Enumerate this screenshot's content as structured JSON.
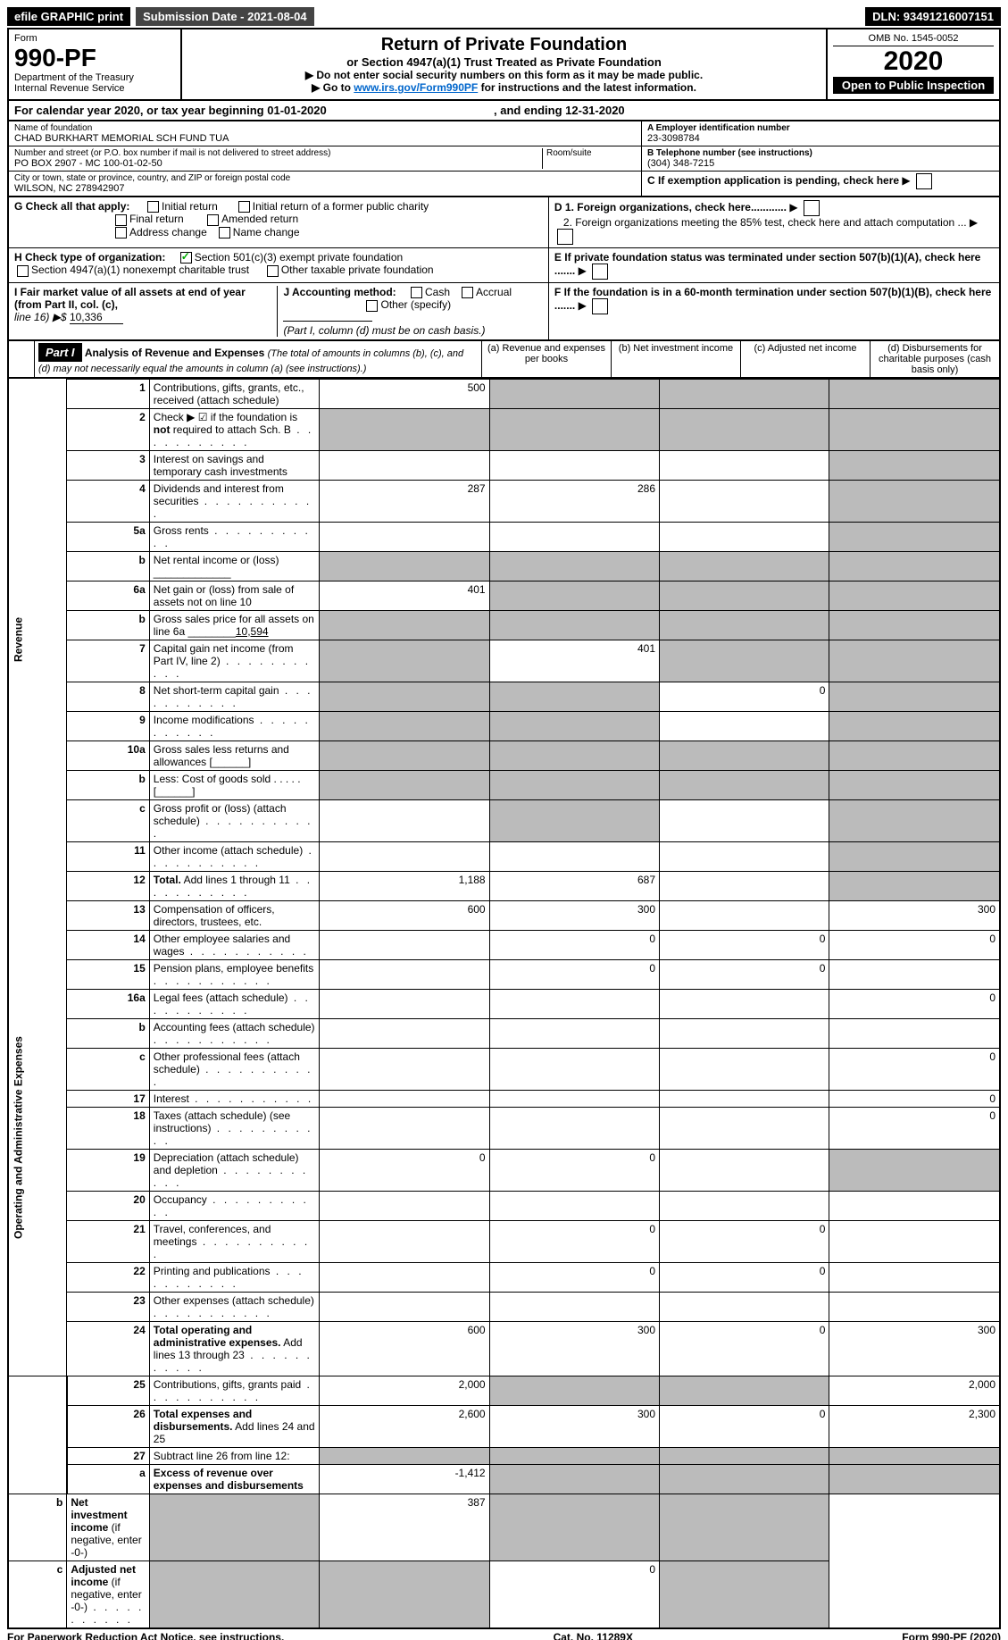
{
  "header": {
    "efile": "efile GRAPHIC print",
    "submission": "Submission Date - 2021-08-04",
    "dln": "DLN: 93491216007151"
  },
  "formbox": {
    "form_label": "Form",
    "form_number": "990-PF",
    "dept1": "Department of the Treasury",
    "dept2": "Internal Revenue Service",
    "title": "Return of Private Foundation",
    "subtitle": "or Section 4947(a)(1) Trust Treated as Private Foundation",
    "instr1": "▶ Do not enter social security numbers on this form as it may be made public.",
    "instr2": "▶ Go to ",
    "instr2_link": "www.irs.gov/Form990PF",
    "instr2_tail": " for instructions and the latest information.",
    "omb": "OMB No. 1545-0052",
    "year": "2020",
    "open": "Open to Public Inspection"
  },
  "calyear": {
    "prefix": "For calendar year 2020, or tax year beginning ",
    "begin": "01-01-2020",
    "mid": ", and ending ",
    "end": "12-31-2020"
  },
  "entity": {
    "name_lbl": "Name of foundation",
    "name": "CHAD BURKHART MEMORIAL SCH FUND TUA",
    "ein_lbl": "A Employer identification number",
    "ein": "23-3098784",
    "addr_lbl": "Number and street (or P.O. box number if mail is not delivered to street address)",
    "addr": "PO BOX 2907 - MC 100-01-02-50",
    "room_lbl": "Room/suite",
    "tel_lbl": "B Telephone number (see instructions)",
    "tel": "(304) 348-7215",
    "city_lbl": "City or town, state or province, country, and ZIP or foreign postal code",
    "city": "WILSON, NC  278942907",
    "c_lbl": "C If exemption application is pending, check here"
  },
  "checks": {
    "g_lbl": "G Check all that apply:",
    "g1": "Initial return",
    "g2": "Final return",
    "g3": "Address change",
    "g4": "Initial return of a former public charity",
    "g5": "Amended return",
    "g6": "Name change",
    "h_lbl": "H Check type of organization:",
    "h1": "Section 501(c)(3) exempt private foundation",
    "h2": "Section 4947(a)(1) nonexempt charitable trust",
    "h3": "Other taxable private foundation",
    "i_lbl": "I Fair market value of all assets at end of year (from Part II, col. (c),",
    "i_line": "line 16) ▶$ ",
    "i_val": "10,336",
    "j_lbl": "J Accounting method:",
    "j_cash": "Cash",
    "j_accr": "Accrual",
    "j_other": "Other (specify)",
    "j_note": "(Part I, column (d) must be on cash basis.)",
    "d1": "D 1. Foreign organizations, check here............",
    "d2": "2. Foreign organizations meeting the 85% test, check here and attach computation ...",
    "e": "E  If private foundation status was terminated under section 507(b)(1)(A), check here .......",
    "f": "F  If the foundation is in a 60-month termination under section 507(b)(1)(B), check here .......",
    "arrow": "▶"
  },
  "part1": {
    "label": "Part I",
    "title": "Analysis of Revenue and Expenses",
    "title_note": " (The total of amounts in columns (b), (c), and (d) may not necessarily equal the amounts in column (a) (see instructions).)",
    "col_a": "(a)   Revenue and expenses per books",
    "col_b": "(b)   Net investment income",
    "col_c": "(c)   Adjusted net income",
    "col_d": "(d)   Disbursements for charitable purposes (cash basis only)"
  },
  "sidelabels": {
    "rev": "Revenue",
    "op": "Operating and Administrative Expenses"
  },
  "rows": [
    {
      "n": "1",
      "lbl": "Contributions, gifts, grants, etc., received (attach schedule)",
      "a": "500",
      "b": "",
      "c": "",
      "d": "",
      "grey_b": true,
      "grey_c": true,
      "grey_d": true
    },
    {
      "n": "2",
      "lbl": "Check ▶ ☑ if the foundation is <b>not</b> required to attach Sch. B",
      "a": "",
      "b": "",
      "c": "",
      "d": "",
      "grey_a": true,
      "grey_b": true,
      "grey_c": true,
      "grey_d": true,
      "dots": true
    },
    {
      "n": "3",
      "lbl": "Interest on savings and temporary cash investments",
      "a": "",
      "b": "",
      "c": "",
      "d": "",
      "grey_d": true
    },
    {
      "n": "4",
      "lbl": "Dividends and interest from securities",
      "a": "287",
      "b": "286",
      "c": "",
      "d": "",
      "grey_d": true,
      "dots": true
    },
    {
      "n": "5a",
      "lbl": "Gross rents",
      "a": "",
      "b": "",
      "c": "",
      "d": "",
      "grey_d": true,
      "dots": true
    },
    {
      "n": "b",
      "lbl": "Net rental income or (loss)  _____________",
      "a": "",
      "b": "",
      "c": "",
      "d": "",
      "grey_a": true,
      "grey_b": true,
      "grey_c": true,
      "grey_d": true
    },
    {
      "n": "6a",
      "lbl": "Net gain or (loss) from sale of assets not on line 10",
      "a": "401",
      "b": "",
      "c": "",
      "d": "",
      "grey_b": true,
      "grey_c": true,
      "grey_d": true
    },
    {
      "n": "b",
      "lbl": "Gross sales price for all assets on line 6a ________<u>10,594</u>",
      "a": "",
      "b": "",
      "c": "",
      "d": "",
      "grey_a": true,
      "grey_b": true,
      "grey_c": true,
      "grey_d": true
    },
    {
      "n": "7",
      "lbl": "Capital gain net income (from Part IV, line 2)",
      "a": "",
      "b": "401",
      "c": "",
      "d": "",
      "grey_a": true,
      "grey_c": true,
      "grey_d": true,
      "dots": true
    },
    {
      "n": "8",
      "lbl": "Net short-term capital gain",
      "a": "",
      "b": "",
      "c": "0",
      "d": "",
      "grey_a": true,
      "grey_b": true,
      "grey_d": true,
      "dots": true
    },
    {
      "n": "9",
      "lbl": "Income modifications",
      "a": "",
      "b": "",
      "c": "",
      "d": "",
      "grey_a": true,
      "grey_b": true,
      "grey_d": true,
      "dots": true
    },
    {
      "n": "10a",
      "lbl": "Gross sales less returns and allowances  [______]",
      "a": "",
      "b": "",
      "c": "",
      "d": "",
      "grey_a": true,
      "grey_b": true,
      "grey_c": true,
      "grey_d": true
    },
    {
      "n": "b",
      "lbl": "Less: Cost of goods sold   .  .  .  .  .  [______]",
      "a": "",
      "b": "",
      "c": "",
      "d": "",
      "grey_a": true,
      "grey_b": true,
      "grey_c": true,
      "grey_d": true
    },
    {
      "n": "c",
      "lbl": "Gross profit or (loss) (attach schedule)",
      "a": "",
      "b": "",
      "c": "",
      "d": "",
      "grey_b": true,
      "grey_d": true,
      "dots": true
    },
    {
      "n": "11",
      "lbl": "Other income (attach schedule)",
      "a": "",
      "b": "",
      "c": "",
      "d": "",
      "grey_d": true,
      "dots": true
    },
    {
      "n": "12",
      "lbl": "<b>Total.</b> Add lines 1 through 11",
      "a": "1,188",
      "b": "687",
      "c": "",
      "d": "",
      "grey_d": true,
      "dots": true
    },
    {
      "n": "13",
      "lbl": "Compensation of officers, directors, trustees, etc.",
      "a": "600",
      "b": "300",
      "c": "",
      "d": "300"
    },
    {
      "n": "14",
      "lbl": "Other employee salaries and wages",
      "a": "",
      "b": "0",
      "c": "0",
      "d": "0",
      "dots": true
    },
    {
      "n": "15",
      "lbl": "Pension plans, employee benefits",
      "a": "",
      "b": "0",
      "c": "0",
      "d": "",
      "dots": true
    },
    {
      "n": "16a",
      "lbl": "Legal fees (attach schedule)",
      "a": "",
      "b": "",
      "c": "",
      "d": "0",
      "dots": true
    },
    {
      "n": "b",
      "lbl": "Accounting fees (attach schedule)",
      "a": "",
      "b": "",
      "c": "",
      "d": "",
      "dots": true
    },
    {
      "n": "c",
      "lbl": "Other professional fees (attach schedule)",
      "a": "",
      "b": "",
      "c": "",
      "d": "0",
      "dots": true
    },
    {
      "n": "17",
      "lbl": "Interest",
      "a": "",
      "b": "",
      "c": "",
      "d": "0",
      "dots": true
    },
    {
      "n": "18",
      "lbl": "Taxes (attach schedule) (see instructions)",
      "a": "",
      "b": "",
      "c": "",
      "d": "0",
      "dots": true
    },
    {
      "n": "19",
      "lbl": "Depreciation (attach schedule) and depletion",
      "a": "0",
      "b": "0",
      "c": "",
      "d": "",
      "grey_d": true,
      "dots": true
    },
    {
      "n": "20",
      "lbl": "Occupancy",
      "a": "",
      "b": "",
      "c": "",
      "d": "",
      "dots": true
    },
    {
      "n": "21",
      "lbl": "Travel, conferences, and meetings",
      "a": "",
      "b": "0",
      "c": "0",
      "d": "",
      "dots": true
    },
    {
      "n": "22",
      "lbl": "Printing and publications",
      "a": "",
      "b": "0",
      "c": "0",
      "d": "",
      "dots": true
    },
    {
      "n": "23",
      "lbl": "Other expenses (attach schedule)",
      "a": "",
      "b": "",
      "c": "",
      "d": "",
      "dots": true
    },
    {
      "n": "24",
      "lbl": "<b>Total operating and administrative expenses.</b> Add lines 13 through 23",
      "a": "600",
      "b": "300",
      "c": "0",
      "d": "300",
      "dots": true
    },
    {
      "n": "25",
      "lbl": "Contributions, gifts, grants paid",
      "a": "2,000",
      "b": "",
      "c": "",
      "d": "2,000",
      "grey_b": true,
      "grey_c": true,
      "dots": true
    },
    {
      "n": "26",
      "lbl": "<b>Total expenses and disbursements.</b> Add lines 24 and 25",
      "a": "2,600",
      "b": "300",
      "c": "0",
      "d": "2,300"
    },
    {
      "n": "27",
      "lbl": "Subtract line 26 from line 12:",
      "a": "",
      "b": "",
      "c": "",
      "d": "",
      "grey_a": true,
      "grey_b": true,
      "grey_c": true,
      "grey_d": true
    },
    {
      "n": "a",
      "lbl": "<b>Excess of revenue over expenses and disbursements</b>",
      "a": "-1,412",
      "b": "",
      "c": "",
      "d": "",
      "grey_b": true,
      "grey_c": true,
      "grey_d": true
    },
    {
      "n": "b",
      "lbl": "<b>Net investment income</b> (if negative, enter -0-)",
      "a": "",
      "b": "387",
      "c": "",
      "d": "",
      "grey_a": true,
      "grey_c": true,
      "grey_d": true
    },
    {
      "n": "c",
      "lbl": "<b>Adjusted net income</b> (if negative, enter -0-)",
      "a": "",
      "b": "",
      "c": "0",
      "d": "",
      "grey_a": true,
      "grey_b": true,
      "grey_d": true,
      "dots": true
    }
  ],
  "footer": {
    "left": "For Paperwork Reduction Act Notice, see instructions.",
    "mid": "Cat. No. 11289X",
    "right": "Form 990-PF (2020)"
  },
  "colors": {
    "grey": "#bbbbbb",
    "link": "#0066cc",
    "check": "#00aa00"
  }
}
